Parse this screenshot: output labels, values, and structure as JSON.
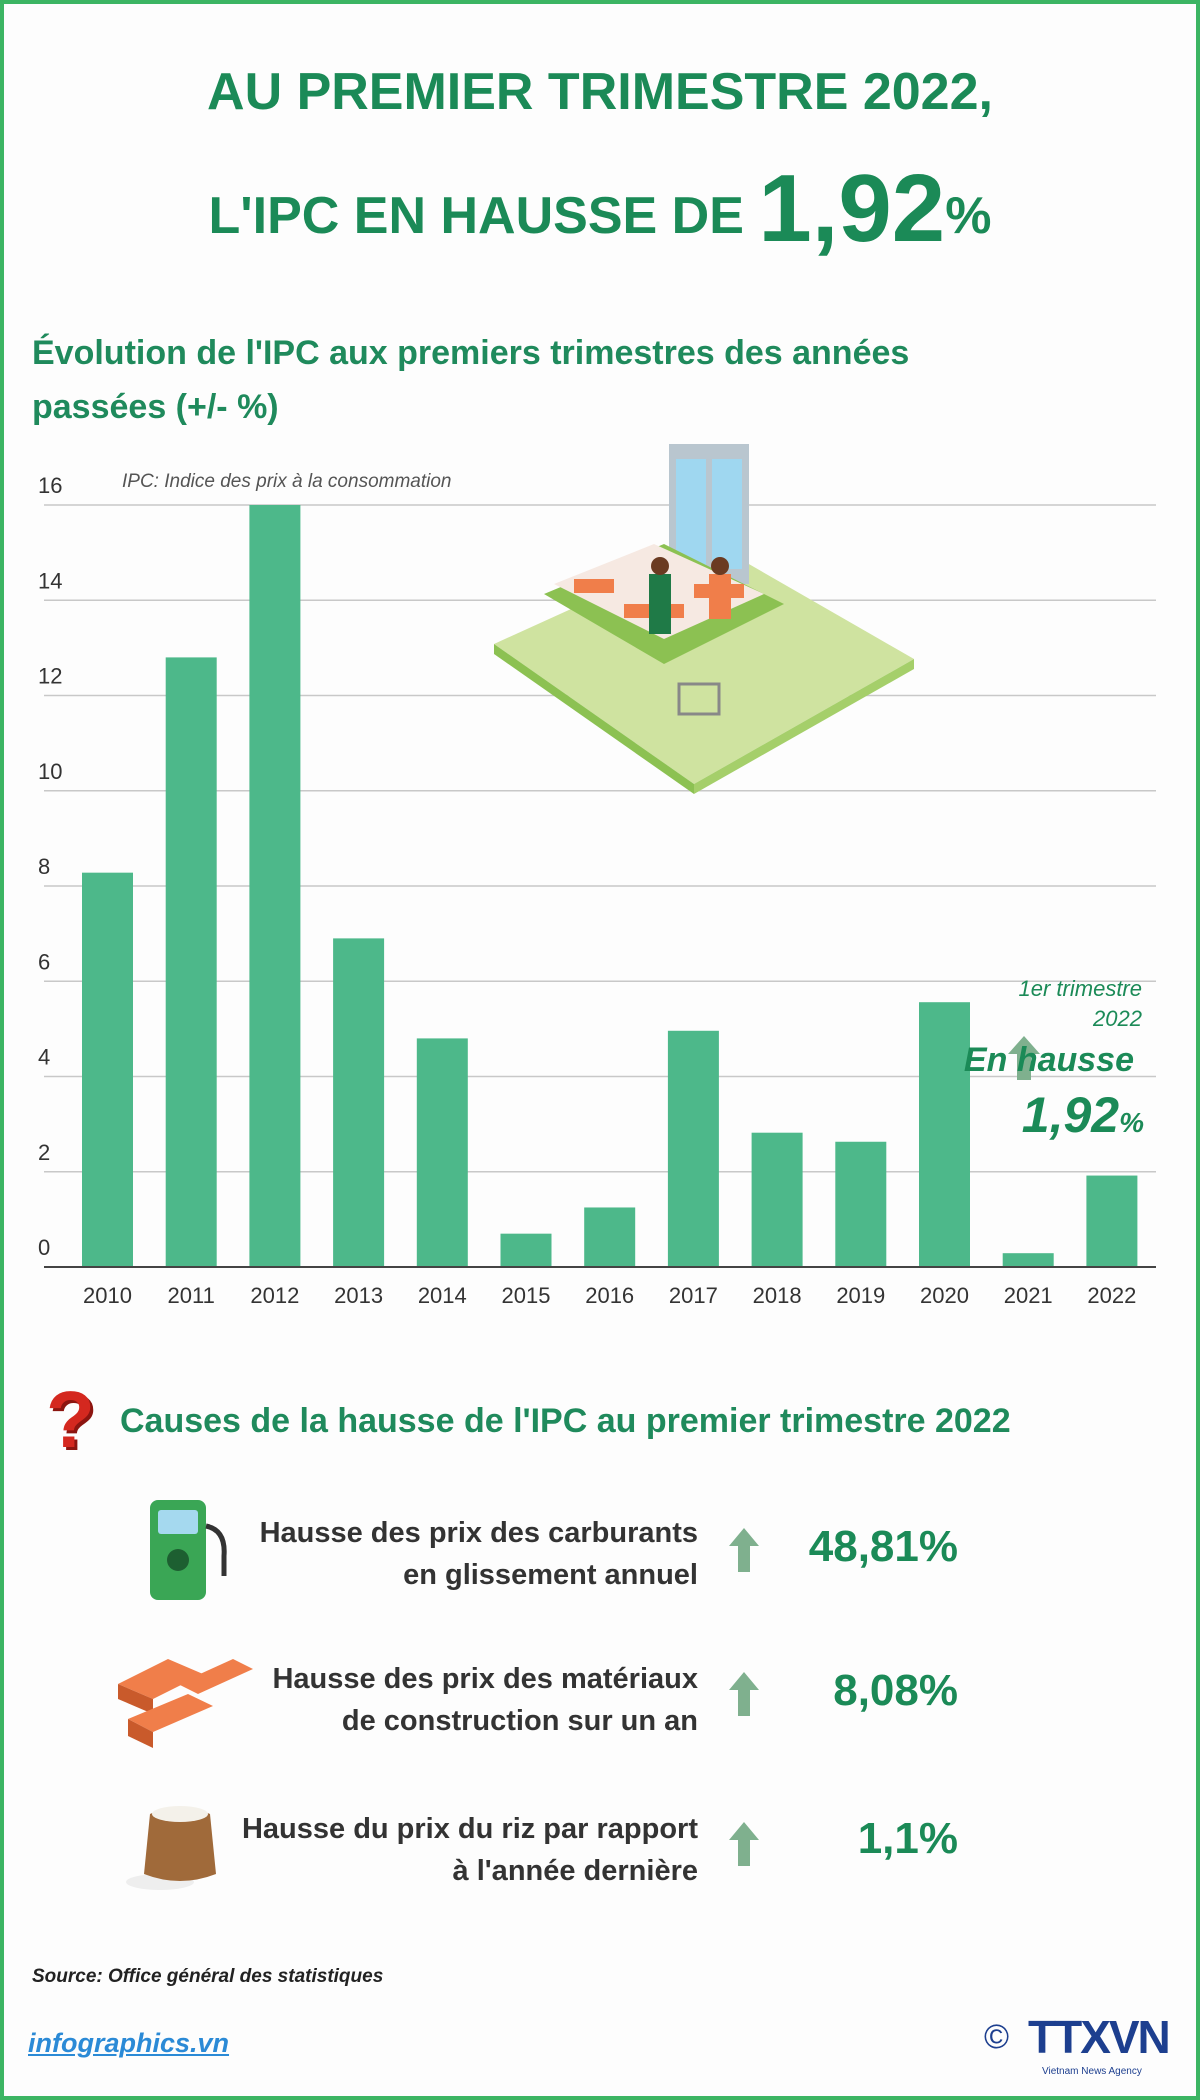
{
  "header": {
    "line1": "AU PREMIER TRIMESTRE 2022,",
    "line2_prefix": "L'IPC EN HAUSSE DE ",
    "line2_value": "1,92",
    "line2_unit": "%"
  },
  "section1": {
    "title": "Évolution de l'IPC aux premiers trimestres des années passées (+/- %)",
    "note": "IPC: Indice des prix à la consommation"
  },
  "highlight": {
    "period_line1": "1er trimestre",
    "period_line2": "2022",
    "label": "En hausse",
    "value": "1,92",
    "unit": "%",
    "icon": "arrow-up-icon"
  },
  "chart_data": {
    "type": "bar",
    "categories": [
      "2010",
      "2011",
      "2012",
      "2013",
      "2014",
      "2015",
      "2016",
      "2017",
      "2018",
      "2019",
      "2020",
      "2021",
      "2022"
    ],
    "values": [
      8.28,
      12.8,
      16.0,
      6.9,
      4.8,
      0.7,
      1.25,
      4.96,
      2.82,
      2.63,
      5.56,
      0.29,
      1.92
    ],
    "ylim": [
      0,
      16
    ],
    "yticks": [
      0,
      2,
      4,
      6,
      8,
      10,
      12,
      14,
      16
    ],
    "grid": true,
    "bar_color": "#4db88a"
  },
  "causes": {
    "title": "Causes de la hausse de l'IPC au premier trimestre 2022",
    "items": [
      {
        "line1": "Hausse des prix des carburants",
        "line2": "en glissement annuel",
        "value": "48,81%",
        "icon": "fuel-pump-icon"
      },
      {
        "line1": "Hausse des prix des  matériaux",
        "line2": "de construction sur un an",
        "value": "8,08%",
        "icon": "bricks-icon"
      },
      {
        "line1": "Hausse du prix du riz par rapport",
        "line2": "à l'année dernière",
        "value": "1,1%",
        "icon": "rice-sack-icon"
      }
    ]
  },
  "footer": {
    "source": "Source: Office général des statistiques",
    "site": "infographics.vn",
    "copyright": "©",
    "agency": "TTXVN",
    "agency_sub": "Vietnam News Agency"
  },
  "colors": {
    "primary": "#1b8a57",
    "border": "#3cb563",
    "bar": "#4db88a",
    "arrow": "#7fb08e"
  }
}
